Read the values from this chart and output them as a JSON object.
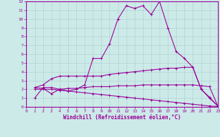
{
  "xlabel": "Windchill (Refroidissement éolien,°C)",
  "ylabel": "",
  "bg_color": "#cceae8",
  "grid_color": "#aacccc",
  "line_color": "#990099",
  "xlim": [
    0,
    23
  ],
  "ylim": [
    0,
    12
  ],
  "xticks": [
    0,
    1,
    2,
    3,
    4,
    5,
    6,
    7,
    8,
    9,
    10,
    11,
    12,
    13,
    14,
    15,
    16,
    17,
    18,
    19,
    20,
    21,
    22,
    23
  ],
  "yticks": [
    0,
    1,
    2,
    3,
    4,
    5,
    6,
    7,
    8,
    9,
    10,
    11,
    12
  ],
  "line1_x": [
    1,
    2,
    3,
    4,
    5,
    6,
    7,
    8,
    9,
    10,
    11,
    12,
    13,
    14,
    15,
    16,
    17,
    18,
    19,
    20,
    21,
    22,
    23
  ],
  "line1_y": [
    1.0,
    2.2,
    2.2,
    2.0,
    1.8,
    2.0,
    2.5,
    5.5,
    5.5,
    7.2,
    10.0,
    11.5,
    11.2,
    11.5,
    10.5,
    12.0,
    9.0,
    6.3,
    5.5,
    4.5,
    2.0,
    1.1,
    0.1
  ],
  "line2_x": [
    1,
    2,
    3,
    4,
    5,
    6,
    7,
    8,
    9,
    10,
    11,
    12,
    13,
    14,
    15,
    16,
    17,
    18,
    19,
    20,
    21,
    22,
    23
  ],
  "line2_y": [
    2.2,
    2.5,
    3.2,
    3.5,
    3.5,
    3.5,
    3.5,
    3.5,
    3.5,
    3.7,
    3.8,
    3.9,
    4.0,
    4.1,
    4.2,
    4.3,
    4.4,
    4.4,
    4.5,
    4.5,
    2.0,
    1.0,
    0.1
  ],
  "line3_x": [
    1,
    2,
    3,
    4,
    5,
    6,
    7,
    8,
    9,
    10,
    11,
    12,
    13,
    14,
    15,
    16,
    17,
    18,
    19,
    20,
    21,
    22,
    23
  ],
  "line3_y": [
    2.2,
    2.1,
    1.5,
    2.0,
    2.1,
    2.1,
    2.2,
    2.3,
    2.3,
    2.3,
    2.4,
    2.4,
    2.4,
    2.5,
    2.5,
    2.5,
    2.5,
    2.5,
    2.5,
    2.5,
    2.4,
    2.3,
    0.1
  ],
  "line4_x": [
    1,
    2,
    3,
    4,
    5,
    6,
    7,
    8,
    9,
    10,
    11,
    12,
    13,
    14,
    15,
    16,
    17,
    18,
    19,
    20,
    21,
    22,
    23
  ],
  "line4_y": [
    2.0,
    2.0,
    2.0,
    1.9,
    1.8,
    1.7,
    1.6,
    1.5,
    1.4,
    1.3,
    1.2,
    1.1,
    1.0,
    0.9,
    0.8,
    0.7,
    0.6,
    0.5,
    0.4,
    0.3,
    0.2,
    0.1,
    0.05
  ],
  "marker": "+",
  "markersize": 3,
  "linewidth": 0.8,
  "tick_fontsize": 4.5,
  "label_fontsize": 5.5
}
